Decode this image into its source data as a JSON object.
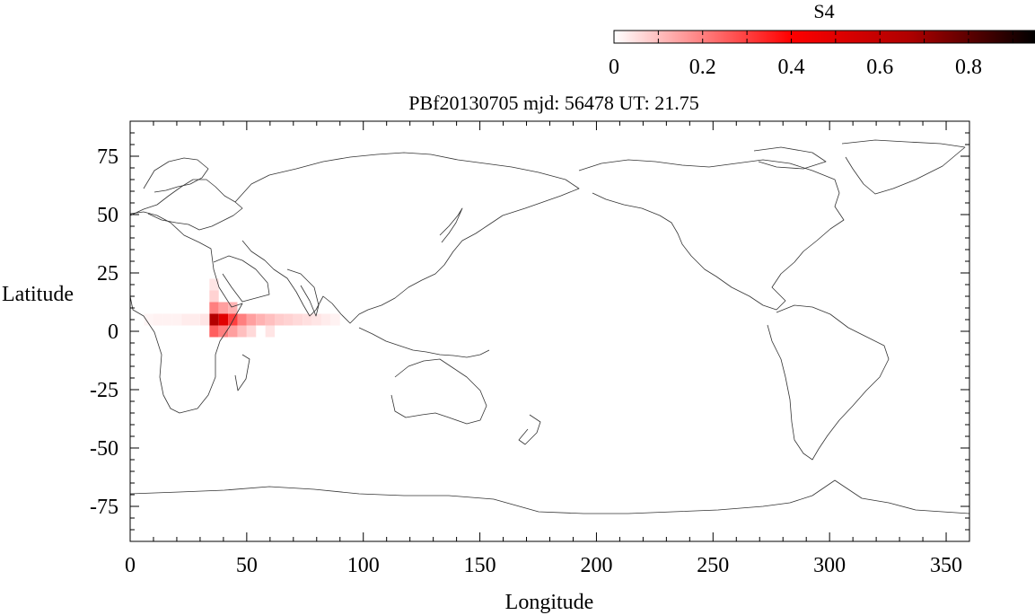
{
  "title": "PBf20130705  mjd: 56478  UT:  21.75",
  "colorbar": {
    "label": "S4",
    "tick_labels": [
      "0",
      "0.2",
      "0.4",
      "0.6",
      "0.8"
    ],
    "range": [
      0,
      0.95
    ],
    "colors": {
      "low": "#ffffff",
      "mid": "#ff0000",
      "high": "#000000"
    }
  },
  "chart_data": {
    "type": "heatmap",
    "title": "PBf20130705  mjd: 56478  UT:  21.75",
    "xlabel": "Longitude",
    "ylabel": "Latitude",
    "xlim": [
      0,
      360
    ],
    "ylim": [
      -90,
      90
    ],
    "x_ticks": [
      0,
      50,
      100,
      150,
      200,
      250,
      300,
      350
    ],
    "y_ticks": [
      75,
      50,
      25,
      0,
      -25,
      -50,
      -75
    ],
    "x_tick_labels": [
      "0",
      "50",
      "100",
      "150",
      "200",
      "250",
      "300",
      "350"
    ],
    "y_tick_labels": [
      "75",
      "50",
      "25",
      "0",
      "-25",
      "-50",
      "-75"
    ],
    "value_label": "S4",
    "cells": [
      {
        "lon": 36,
        "lat": 5,
        "s4": 0.65
      },
      {
        "lon": 40,
        "lat": 5,
        "s4": 0.5
      },
      {
        "lon": 36,
        "lat": 10,
        "s4": 0.2
      },
      {
        "lon": 40,
        "lat": 10,
        "s4": 0.15
      },
      {
        "lon": 36,
        "lat": 0,
        "s4": 0.25
      },
      {
        "lon": 40,
        "lat": 0,
        "s4": 0.2
      },
      {
        "lon": 44,
        "lat": 5,
        "s4": 0.3
      },
      {
        "lon": 44,
        "lat": 0,
        "s4": 0.15
      },
      {
        "lon": 44,
        "lat": 10,
        "s4": 0.12
      },
      {
        "lon": 48,
        "lat": 5,
        "s4": 0.2
      },
      {
        "lon": 48,
        "lat": 0,
        "s4": 0.1
      },
      {
        "lon": 52,
        "lat": 5,
        "s4": 0.15
      },
      {
        "lon": 56,
        "lat": 5,
        "s4": 0.12
      },
      {
        "lon": 60,
        "lat": 5,
        "s4": 0.1
      },
      {
        "lon": 64,
        "lat": 5,
        "s4": 0.08
      },
      {
        "lon": 68,
        "lat": 5,
        "s4": 0.07
      },
      {
        "lon": 72,
        "lat": 5,
        "s4": 0.06
      },
      {
        "lon": 76,
        "lat": 5,
        "s4": 0.05
      },
      {
        "lon": 80,
        "lat": 5,
        "s4": 0.04
      },
      {
        "lon": 84,
        "lat": 5,
        "s4": 0.03
      },
      {
        "lon": 88,
        "lat": 5,
        "s4": 0.02
      },
      {
        "lon": 52,
        "lat": 0,
        "s4": 0.06
      },
      {
        "lon": 60,
        "lat": 0,
        "s4": 0.04
      },
      {
        "lon": 36,
        "lat": 15,
        "s4": 0.07
      },
      {
        "lon": 36,
        "lat": 20,
        "s4": 0.04
      },
      {
        "lon": 32,
        "lat": 5,
        "s4": 0.04
      },
      {
        "lon": 28,
        "lat": 5,
        "s4": 0.03
      },
      {
        "lon": 24,
        "lat": 5,
        "s4": 0.03
      },
      {
        "lon": 20,
        "lat": 5,
        "s4": 0.02
      },
      {
        "lon": 16,
        "lat": 5,
        "s4": 0.02
      },
      {
        "lon": 12,
        "lat": 5,
        "s4": 0.02
      },
      {
        "lon": 8,
        "lat": 5,
        "s4": 0.015
      }
    ]
  }
}
